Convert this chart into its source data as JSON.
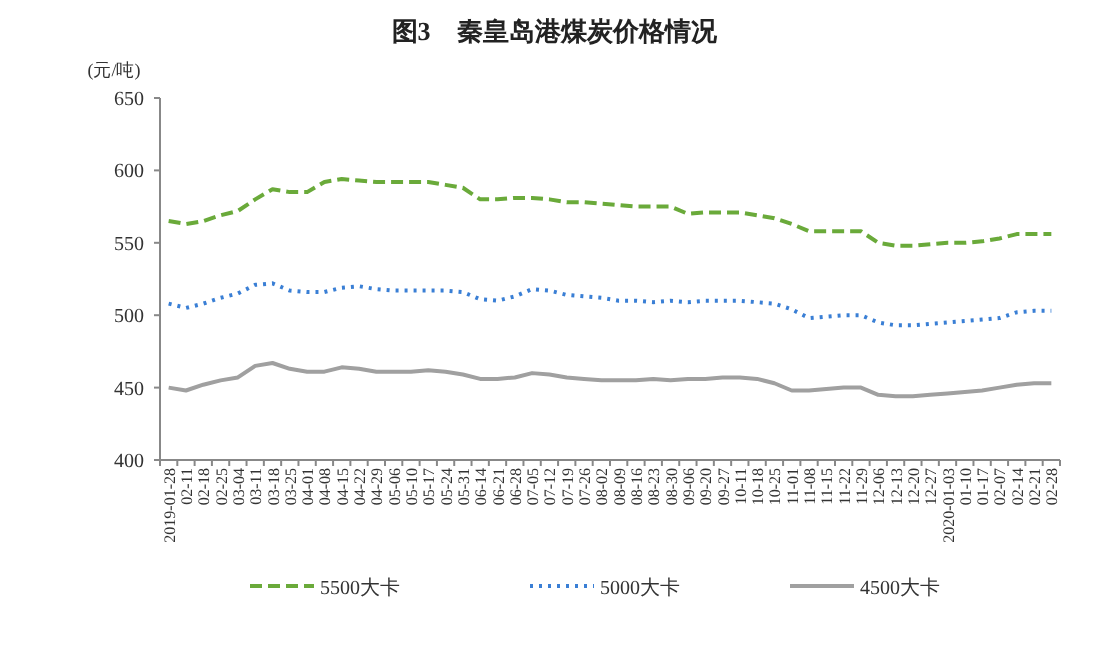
{
  "chart_data": {
    "type": "line",
    "title": "图3　秦皇岛港煤炭价格情况",
    "ylabel": "(元/吨)",
    "categories": [
      "2019-01-28",
      "02-11",
      "02-18",
      "02-25",
      "03-04",
      "03-11",
      "03-18",
      "03-25",
      "04-01",
      "04-08",
      "04-15",
      "04-22",
      "04-29",
      "05-06",
      "05-10",
      "05-17",
      "05-24",
      "05-31",
      "06-14",
      "06-21",
      "06-28",
      "07-05",
      "07-12",
      "07-19",
      "07-26",
      "08-02",
      "08-09",
      "08-16",
      "08-23",
      "08-30",
      "09-06",
      "09-20",
      "09-27",
      "10-11",
      "10-18",
      "10-25",
      "11-01",
      "11-08",
      "11-15",
      "11-22",
      "11-29",
      "12-06",
      "12-13",
      "12-20",
      "12-27",
      "2020-01-03",
      "01-10",
      "01-17",
      "02-07",
      "02-14",
      "02-21",
      "02-28"
    ],
    "ylim": [
      400,
      650
    ],
    "yticks": [
      400,
      450,
      500,
      550,
      600,
      650
    ],
    "grid": false,
    "legend": "bottom",
    "marker": "none",
    "series": [
      {
        "name": "5500大卡",
        "color": "#6aaa3a",
        "line_style": "dashed",
        "values": [
          565,
          563,
          565,
          569,
          572,
          580,
          587,
          585,
          585,
          592,
          594,
          593,
          592,
          592,
          592,
          592,
          590,
          588,
          580,
          580,
          581,
          581,
          580,
          578,
          578,
          577,
          576,
          575,
          575,
          575,
          570,
          571,
          571,
          571,
          569,
          567,
          563,
          558,
          558,
          558,
          558,
          550,
          548,
          548,
          549,
          550,
          550,
          551,
          553,
          556,
          556,
          556
        ]
      },
      {
        "name": "5000大卡",
        "color": "#3a7fd5",
        "line_style": "dotted",
        "values": [
          508,
          505,
          508,
          512,
          515,
          521,
          522,
          517,
          516,
          516,
          519,
          520,
          518,
          517,
          517,
          517,
          517,
          516,
          511,
          510,
          513,
          518,
          517,
          514,
          513,
          512,
          510,
          510,
          509,
          510,
          509,
          510,
          510,
          510,
          509,
          508,
          504,
          498,
          499,
          500,
          500,
          495,
          493,
          493,
          494,
          495,
          496,
          497,
          498,
          502,
          503,
          503
        ]
      },
      {
        "name": "4500大卡",
        "color": "#a0a0a0",
        "line_style": "solid",
        "values": [
          450,
          448,
          452,
          455,
          457,
          465,
          467,
          463,
          461,
          461,
          464,
          463,
          461,
          461,
          461,
          462,
          461,
          459,
          456,
          456,
          457,
          460,
          459,
          457,
          456,
          455,
          455,
          455,
          456,
          455,
          456,
          456,
          457,
          457,
          456,
          453,
          448,
          448,
          449,
          450,
          450,
          445,
          444,
          444,
          445,
          446,
          447,
          448,
          450,
          452,
          453,
          453
        ]
      }
    ]
  }
}
